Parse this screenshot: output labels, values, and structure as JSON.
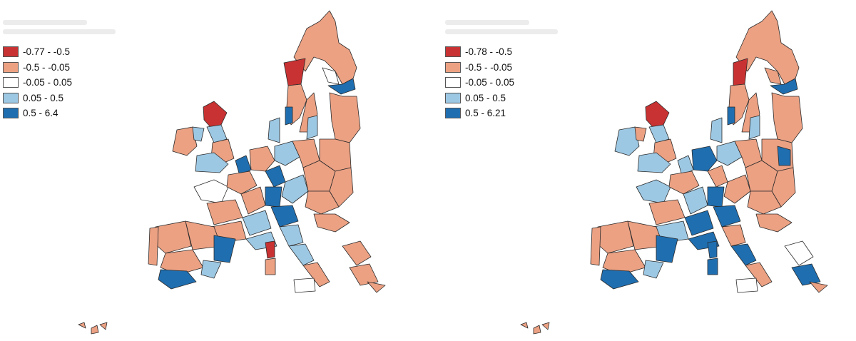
{
  "colors": {
    "class_1": "#c83232",
    "class_2": "#eca183",
    "class_3": "#ffffff",
    "class_4": "#9dc8e4",
    "class_5": "#1f6eb0",
    "border": "#2b2b2b"
  },
  "maps": [
    {
      "legend": {
        "items": [
          {
            "label": "-0.77 - -0.5",
            "color": "#c83232"
          },
          {
            "label": "-0.5 - -0.05",
            "color": "#eca183"
          },
          {
            "label": "-0.05 - 0.05",
            "color": "#ffffff"
          },
          {
            "label": "0.05 - 0.5",
            "color": "#9dc8e4"
          },
          {
            "label": "0.5 - 6.4",
            "color": "#1f6eb0"
          }
        ]
      }
    },
    {
      "legend": {
        "items": [
          {
            "label": "-0.78 - -0.5",
            "color": "#c83232"
          },
          {
            "label": "-0.5 - -0.05",
            "color": "#eca183"
          },
          {
            "label": "-0.05 - 0.05",
            "color": "#ffffff"
          },
          {
            "label": "0.05 - 0.5",
            "color": "#9dc8e4"
          },
          {
            "label": "0.5 - 6.21",
            "color": "#1f6eb0"
          }
        ]
      }
    }
  ]
}
